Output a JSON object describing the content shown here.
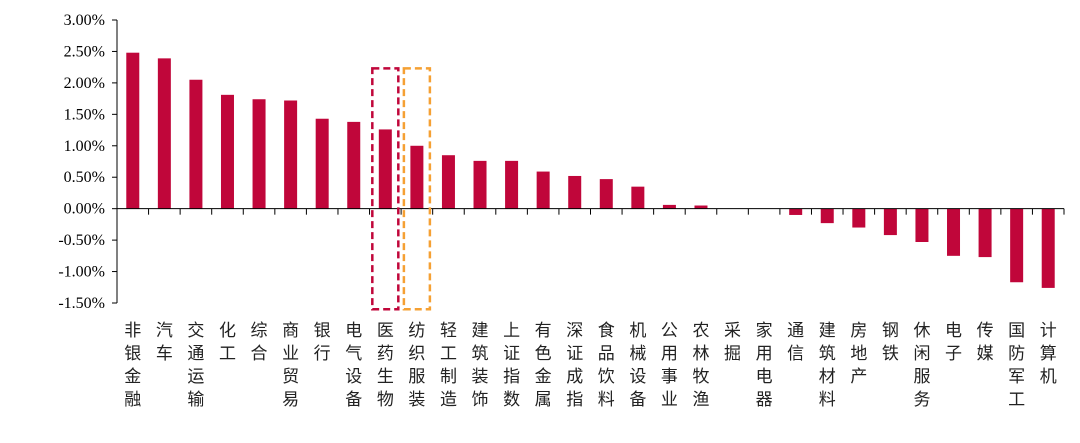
{
  "chart_data": {
    "type": "bar",
    "title": "",
    "xlabel": "",
    "ylabel": "",
    "ylim": [
      -1.5,
      3.0
    ],
    "yticks": [
      3.0,
      2.5,
      2.0,
      1.5,
      1.0,
      0.5,
      0.0,
      -0.5,
      -1.0,
      -1.5
    ],
    "ytick_labels": [
      "3.00%",
      "2.50%",
      "2.00%",
      "1.50%",
      "1.00%",
      "0.50%",
      "0.00%",
      "-0.50%",
      "-1.00%",
      "-1.50%"
    ],
    "grid": false,
    "legend": "none",
    "bar_color": "#C0063A",
    "highlight_colors": [
      "#C0063A",
      "#F5A033"
    ],
    "highlighted_categories": [
      "医药生物",
      "纺织服装"
    ],
    "categories": [
      "非银金融",
      "汽车",
      "交通运输",
      "化工",
      "综合",
      "商业贸易",
      "银行",
      "电气设备",
      "医药生物",
      "纺织服装",
      "轻工制造",
      "建筑装饰",
      "上证指数",
      "有色金属",
      "深证成指",
      "食品饮料",
      "机械设备",
      "公用事业",
      "农林牧渔",
      "采掘",
      "家用电器",
      "通信",
      "建筑材料",
      "房地产",
      "钢铁",
      "休闲服务",
      "电子",
      "传媒",
      "国防军工",
      "计算机"
    ],
    "values": [
      2.48,
      2.39,
      2.05,
      1.81,
      1.74,
      1.72,
      1.43,
      1.38,
      1.26,
      1.0,
      0.85,
      0.76,
      0.76,
      0.59,
      0.52,
      0.47,
      0.35,
      0.06,
      0.05,
      0.0,
      0.0,
      -0.1,
      -0.23,
      -0.3,
      -0.42,
      -0.53,
      -0.75,
      -0.77,
      -1.17,
      -1.26
    ],
    "unit": "%"
  }
}
